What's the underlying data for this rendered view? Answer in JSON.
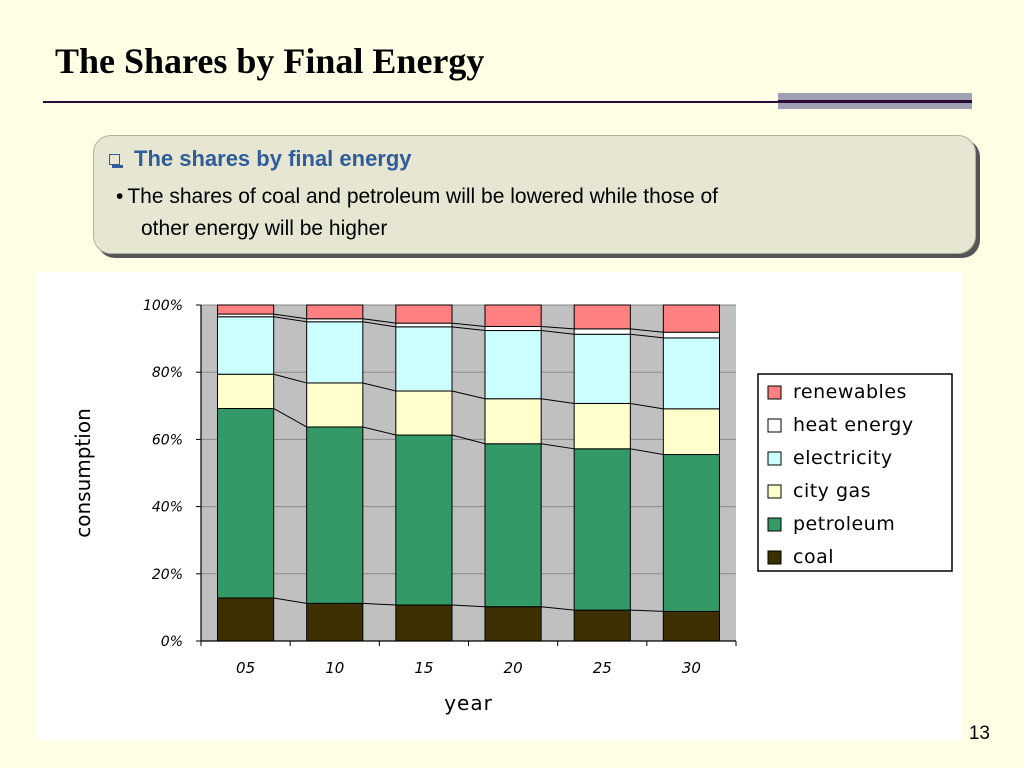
{
  "slide": {
    "title": "The Shares by Final Energy",
    "page_number": "13"
  },
  "callout": {
    "heading": "The shares by final energy",
    "bullet": "•",
    "body_line1": "The shares of coal and petroleum will be lowered while those of",
    "body_line2": "other energy will be higher"
  },
  "colors": {
    "background": "#ffffe6",
    "heading_blue": "#2f5d9a",
    "plot_bg": "#c0c0c0"
  },
  "chart_data": {
    "type": "bar",
    "stacked": true,
    "percent": true,
    "categories": [
      "05",
      "10",
      "15",
      "20",
      "25",
      "30"
    ],
    "series": [
      {
        "name": "coal",
        "color": "#3d3000",
        "values": [
          12.8,
          11.2,
          10.7,
          10.2,
          9.2,
          8.8
        ]
      },
      {
        "name": "petroleum",
        "color": "#339966",
        "values": [
          56.4,
          52.5,
          50.6,
          48.5,
          48.0,
          46.7
        ]
      },
      {
        "name": "city gas",
        "color": "#ffffcc",
        "values": [
          10.2,
          13.1,
          13.1,
          13.4,
          13.5,
          13.6
        ]
      },
      {
        "name": "electricity",
        "color": "#ccffff",
        "values": [
          17.1,
          18.2,
          19.1,
          20.3,
          20.6,
          21.1
        ]
      },
      {
        "name": "heat energy",
        "color": "#ffffff",
        "values": [
          0.8,
          0.9,
          1.1,
          1.2,
          1.6,
          1.7
        ]
      },
      {
        "name": "renewables",
        "color": "#ff8080",
        "values": [
          2.7,
          4.1,
          5.4,
          6.4,
          7.1,
          8.1
        ]
      }
    ],
    "xlabel": "year",
    "ylabel": "consumption",
    "ylim": [
      0,
      100
    ],
    "yticks": [
      "0%",
      "20%",
      "40%",
      "60%",
      "80%",
      "100%"
    ],
    "legend": [
      "renewables",
      "heat energy",
      "electricity",
      "city gas",
      "petroleum",
      "coal"
    ],
    "legend_position": "right",
    "grid": true
  }
}
